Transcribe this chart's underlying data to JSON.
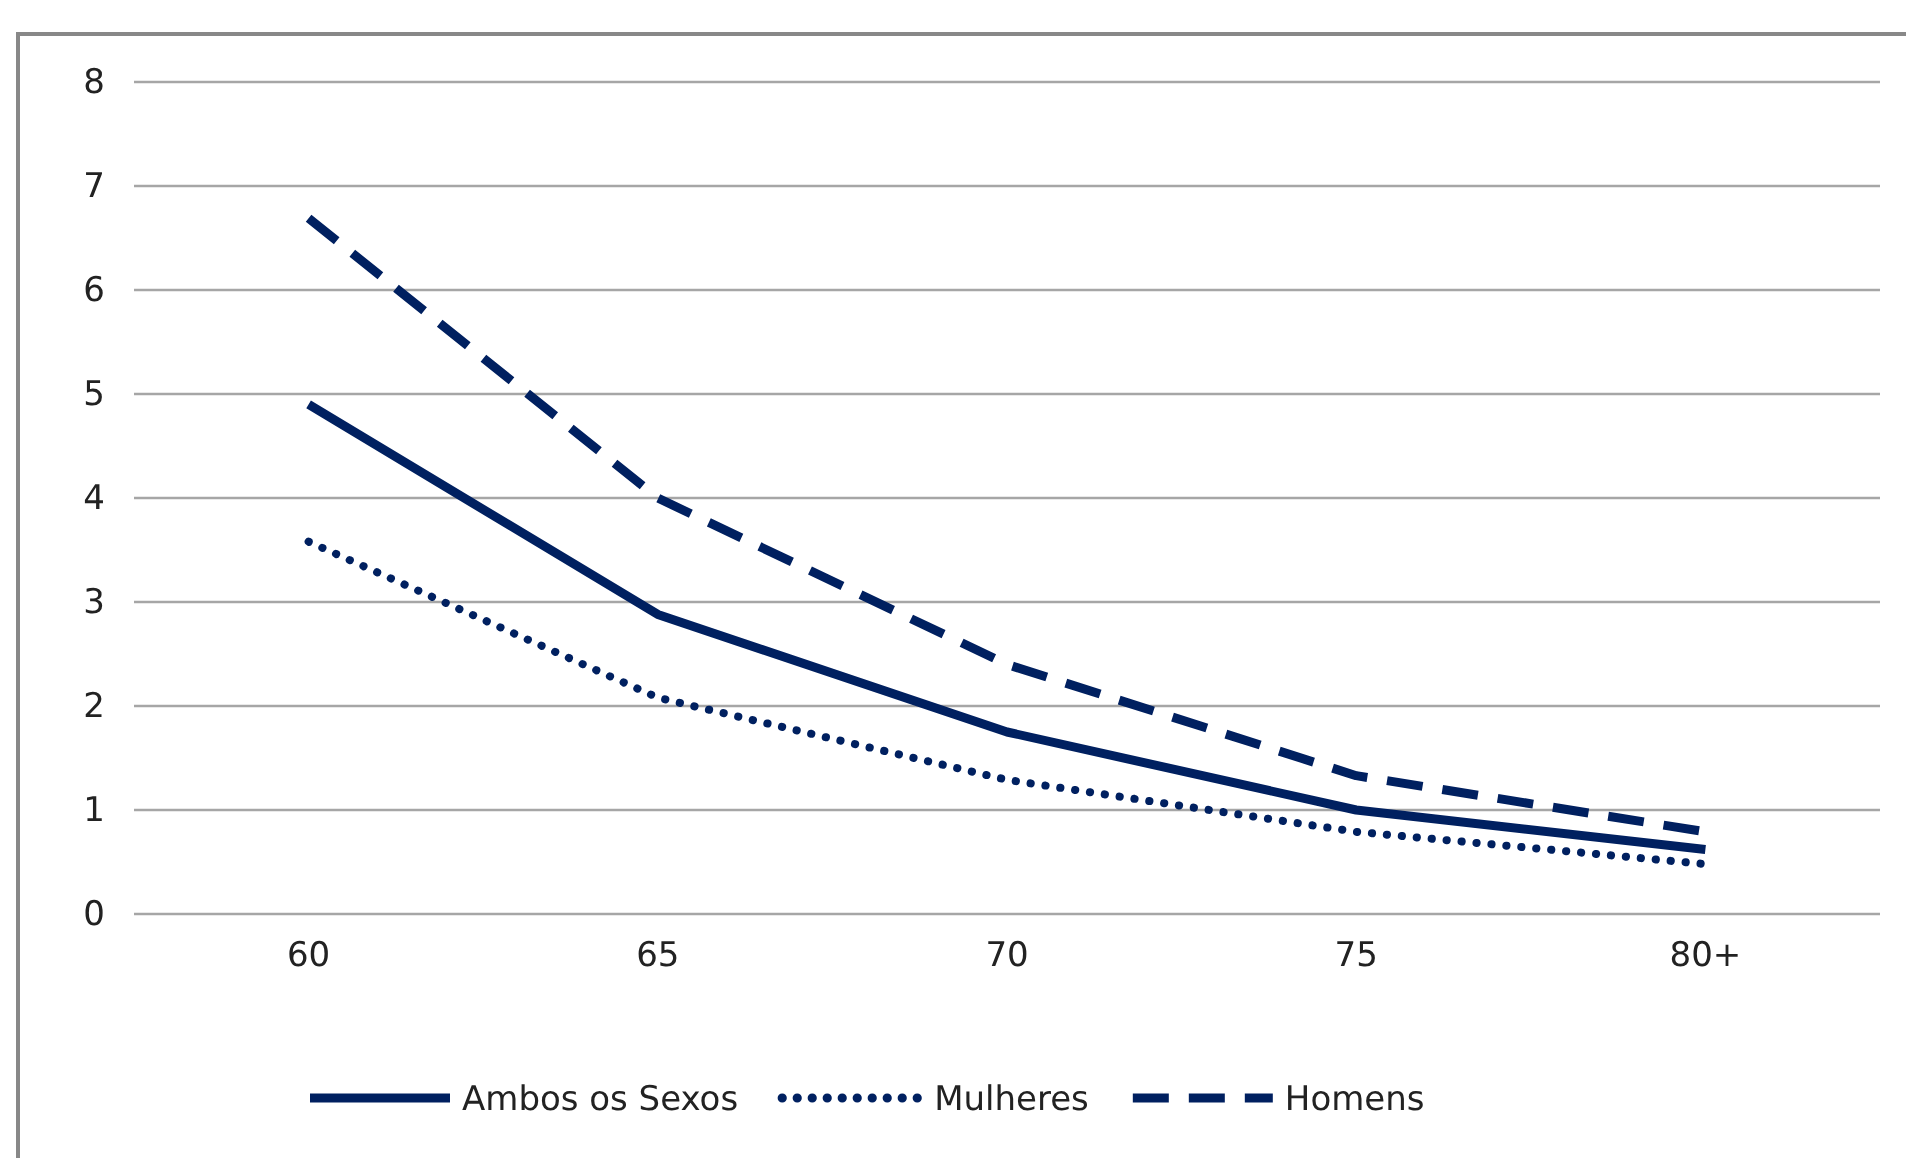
{
  "chart_data": {
    "type": "line",
    "categories": [
      "60",
      "65",
      "70",
      "75",
      "80+"
    ],
    "series": [
      {
        "name": "Ambos os Sexos",
        "color": "#002060",
        "line_style": "solid",
        "values": [
          4.9,
          2.88,
          1.75,
          1.0,
          0.62
        ]
      },
      {
        "name": "Mulheres",
        "color": "#002060",
        "line_style": "dotted",
        "values": [
          3.58,
          2.08,
          1.29,
          0.79,
          0.48
        ]
      },
      {
        "name": "Homens",
        "color": "#002060",
        "line_style": "dashed",
        "values": [
          6.69,
          4.0,
          2.4,
          1.33,
          0.79
        ]
      }
    ],
    "ylim": [
      0,
      8
    ],
    "yticks": [
      0,
      1,
      2,
      3,
      4,
      5,
      6,
      7,
      8
    ],
    "grid": "y",
    "legend": "bottom",
    "marker": "none"
  }
}
